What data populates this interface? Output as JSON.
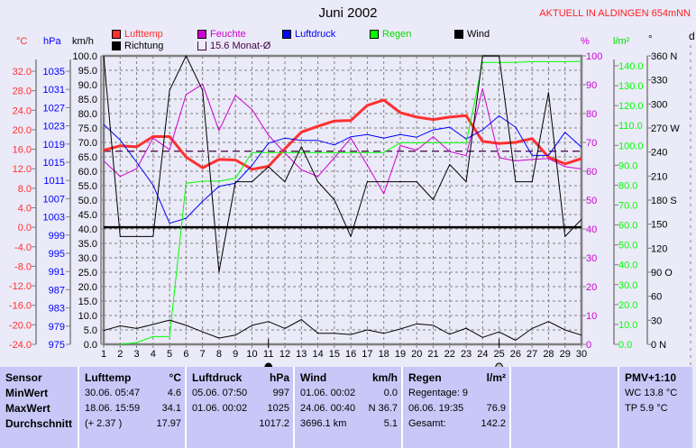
{
  "header": {
    "title": "Juni 2002",
    "station": "AKTUELL IN ALDINGEN 654mNN"
  },
  "legend": [
    {
      "label": "Lufttemp",
      "color": "#ff3030"
    },
    {
      "label": "Feuchte",
      "color": "#d000d0"
    },
    {
      "label": "Luftdruck",
      "color": "#0000ff"
    },
    {
      "label": "Regen",
      "color": "#00ff00"
    },
    {
      "label": "Wind",
      "color": "#000000"
    },
    {
      "label": "Richtung",
      "color": "#000000"
    },
    {
      "label": "15.6 Monat-Ø",
      "color": "#400040"
    }
  ],
  "units": {
    "temp": "°C",
    "pressure": "hPa",
    "wind": "km/h",
    "humidity": "%",
    "rain": "l/m²",
    "direction": "°",
    "day": "d"
  },
  "chart_data": {
    "type": "line",
    "title": "Juni 2002",
    "x": [
      1,
      2,
      3,
      4,
      5,
      6,
      7,
      8,
      9,
      10,
      11,
      12,
      13,
      14,
      15,
      16,
      17,
      18,
      19,
      20,
      21,
      22,
      23,
      24,
      25,
      26,
      27,
      28,
      29,
      30
    ],
    "xlim": [
      1,
      30
    ],
    "grid": true,
    "legend_position": "top",
    "axes": {
      "temp": {
        "range": [
          -24,
          32
        ],
        "ticks": [
          "32.0",
          "28.0",
          "24.0",
          "20.0",
          "16.0",
          "12.0",
          "8.0",
          "4.0",
          "0.0",
          "-4.0",
          "-8.0",
          "-12.0",
          "-16.0",
          "-20.0",
          "-24.0"
        ],
        "color": "#ff3030"
      },
      "pressure": {
        "range": [
          975,
          1035
        ],
        "ticks": [
          "1035",
          "1031",
          "1027",
          "1023",
          "1019",
          "1015",
          "1011",
          "1007",
          "1003",
          "999",
          "995",
          "991",
          "987",
          "983",
          "979",
          "975"
        ],
        "color": "#0000ff"
      },
      "wind": {
        "range": [
          0,
          100
        ],
        "ticks": [
          "100.0",
          "95.0",
          "90.0",
          "85.0",
          "80.0",
          "75.0",
          "70.0",
          "65.0",
          "60.0",
          "55.0",
          "50.0",
          "45.0",
          "40.0",
          "35.0",
          "30.0",
          "25.0",
          "20.0",
          "15.0",
          "10.0",
          "5.0",
          "0.0"
        ],
        "color": "#000000"
      },
      "humidity": {
        "range": [
          0,
          100
        ],
        "ticks": [
          "100",
          "90",
          "80",
          "70",
          "60",
          "50",
          "40",
          "30",
          "20",
          "10",
          "0"
        ],
        "color": "#d000d0"
      },
      "rain": {
        "range": [
          0,
          140
        ],
        "ticks": [
          "140.0",
          "130.0",
          "120.0",
          "110.0",
          "100.0",
          "90.0",
          "80.0",
          "70.0",
          "60.0",
          "50.0",
          "40.0",
          "30.0",
          "20.0",
          "10.0",
          "0.0"
        ],
        "color": "#00ff00"
      },
      "direction": {
        "range": [
          0,
          360
        ],
        "ticks": [
          "360 N",
          "330",
          "300",
          "270 W",
          "240",
          "210",
          "180 S",
          "150",
          "120",
          "90  O",
          "60",
          "30",
          "0    N"
        ],
        "color": "#000000"
      }
    },
    "series": [
      {
        "name": "Lufttemp",
        "axis": "temp",
        "color": "#ff3030",
        "values": [
          15.8,
          16.7,
          16.5,
          18.6,
          18.6,
          14.4,
          12.2,
          13.9,
          13.8,
          11.9,
          12.5,
          16.1,
          19.5,
          20.7,
          21.8,
          21.9,
          25.0,
          26.1,
          23.5,
          22.6,
          22.1,
          22.6,
          22.9,
          17.6,
          17.2,
          17.4,
          18.2,
          14.4,
          13.0,
          14.1
        ]
      },
      {
        "name": "Feuchte",
        "axis": "humidity",
        "color": "#d000d0",
        "values": [
          63.6,
          58.2,
          60.9,
          71.5,
          67.5,
          86.6,
          90.2,
          74.1,
          86.3,
          81.4,
          72.5,
          66.3,
          60.5,
          58.2,
          64.7,
          71.5,
          62.1,
          52.2,
          68.9,
          67.3,
          72.0,
          66.8,
          65.4,
          88.6,
          64.7,
          63.6,
          64.1,
          64.4,
          61.6,
          60.8
        ]
      },
      {
        "name": "Luftdruck",
        "axis": "pressure",
        "color": "#0000ff",
        "values": [
          1023.3,
          1019.9,
          1015.0,
          1010.0,
          1001.6,
          1002.7,
          1006.4,
          1009.7,
          1010.4,
          1014.3,
          1019.2,
          1020.3,
          1019.8,
          1019.8,
          1018.8,
          1020.6,
          1021.1,
          1020.3,
          1021.1,
          1020.5,
          1022.1,
          1022.7,
          1020.1,
          1022.1,
          1025.2,
          1022.7,
          1016.5,
          1016.5,
          1021.6,
          1018.3
        ]
      },
      {
        "name": "Regen",
        "axis": "rain",
        "color": "#00ff00",
        "values": [
          null,
          0.0,
          0.9,
          3.9,
          3.9,
          81.0,
          82.0,
          82.0,
          83.5,
          96.4,
          96.4,
          96.4,
          96.4,
          96.4,
          96.4,
          96.4,
          96.4,
          96.4,
          101.3,
          101.3,
          101.3,
          101.3,
          101.3,
          141.7,
          141.7,
          141.7,
          142.1,
          142.1,
          142.1,
          142.2
        ]
      },
      {
        "name": "Wind",
        "axis": "wind",
        "color": "#000000",
        "values": [
          4.8,
          6.4,
          5.5,
          6.9,
          8.4,
          6.6,
          4.3,
          2.2,
          3.2,
          6.6,
          7.9,
          5.5,
          8.6,
          3.8,
          3.8,
          3.4,
          5.0,
          3.8,
          5.3,
          7.1,
          6.6,
          3.5,
          5.6,
          2.4,
          4.3,
          1.4,
          5.5,
          7.9,
          5.0,
          3.2
        ]
      },
      {
        "name": "Richtung",
        "axis": "direction",
        "color": "#000000",
        "values": [
          360,
          134.6,
          134.6,
          134.6,
          317,
          360,
          317,
          90.4,
          203,
          203,
          221.6,
          203,
          246.7,
          203,
          180.4,
          134.6,
          203,
          203,
          203,
          203,
          180.4,
          224.3,
          203,
          360,
          360,
          203,
          203,
          314.3,
          134.6,
          156
        ]
      }
    ],
    "reference_lines": [
      {
        "label": "15.6 Monat-Ø",
        "axis": "temp",
        "value": 15.6,
        "color": "#400040",
        "style": "dashed"
      },
      {
        "axis": "temp",
        "value": 0,
        "color": "#000000",
        "style": "solid"
      }
    ],
    "moon_phases": [
      {
        "day": 11,
        "phase": "new-moon"
      },
      {
        "day": 25,
        "phase": "full-moon"
      }
    ]
  },
  "table": {
    "sensor": {
      "header": "Sensor",
      "rows": [
        "MinWert",
        "MaxWert",
        "Durchschnitt"
      ]
    },
    "lufttemp": {
      "header": "Lufttemp",
      "unit": "°C",
      "rows": [
        [
          "30.06.  05:47",
          "4.6"
        ],
        [
          "18.06.  15:59",
          "34.1"
        ],
        [
          "(+ 2.37 )",
          "17.97"
        ]
      ]
    },
    "luftdruck": {
      "header": "Luftdruck",
      "unit": "hPa",
      "rows": [
        [
          "05.06.  07:50",
          "997"
        ],
        [
          "01.06.  00:02",
          "1025"
        ],
        [
          "",
          "1017.2"
        ]
      ]
    },
    "wind": {
      "header": "Wind",
      "unit": "km/h",
      "rows": [
        [
          "01.06.  00:02",
          "0.0"
        ],
        [
          "24.06.  00:40",
          "N 36.7"
        ],
        [
          "3696.1 km",
          "5.1"
        ]
      ]
    },
    "regen": {
      "header": "Regen",
      "unit": "l/m²",
      "rows": [
        [
          "Regentage: 9",
          ""
        ],
        [
          "06.06.  19:35",
          "76.9"
        ],
        [
          "Gesamt:",
          "142.2"
        ]
      ]
    },
    "pmv": {
      "header": "PMV+1:10",
      "rows": [
        "WC 13.8 °C",
        "TP 5.9 °C"
      ]
    }
  }
}
